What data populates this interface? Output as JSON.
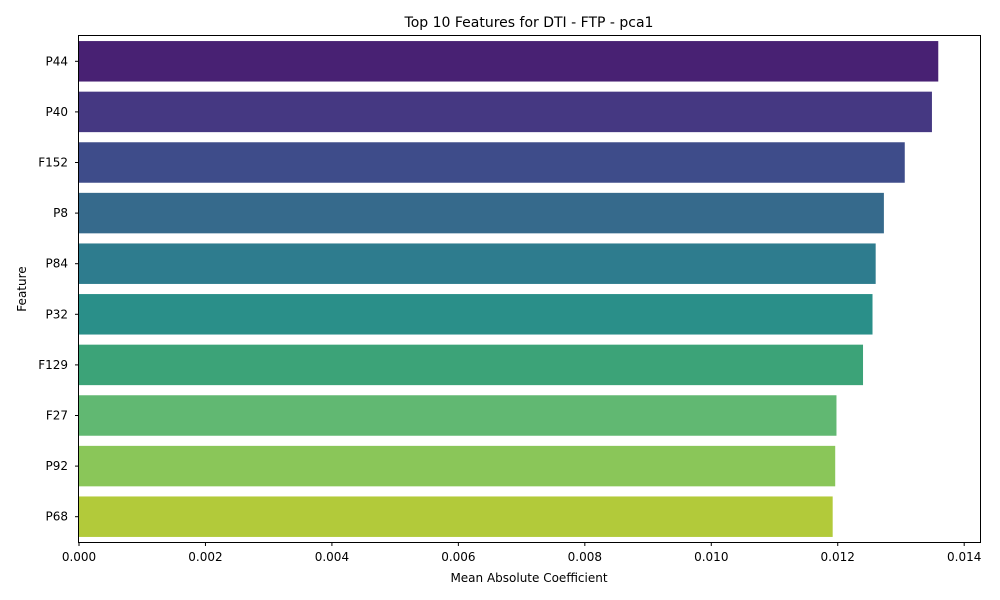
{
  "chart_data": {
    "type": "bar",
    "orientation": "horizontal",
    "title": "Top 10 Features for DTI - FTP - pca1",
    "xlabel": "Mean Absolute Coefficient",
    "ylabel": "Feature",
    "xlim": [
      0,
      0.01425
    ],
    "xticks": [
      "0.000",
      "0.002",
      "0.004",
      "0.006",
      "0.008",
      "0.010",
      "0.012",
      "0.014"
    ],
    "categories": [
      "P44",
      "P40",
      "F152",
      "P8",
      "P84",
      "P32",
      "F129",
      "F27",
      "P92",
      "P68"
    ],
    "values": [
      0.01359,
      0.01349,
      0.01306,
      0.01273,
      0.0126,
      0.01255,
      0.0124,
      0.01198,
      0.01196,
      0.01192
    ],
    "colors": [
      "#482173",
      "#453882",
      "#3e4c8a",
      "#366a8c",
      "#2e7c8e",
      "#2a8f89",
      "#3ca378",
      "#61b872",
      "#8ac659",
      "#b2ca3a"
    ],
    "grid": false,
    "legend": "none"
  }
}
